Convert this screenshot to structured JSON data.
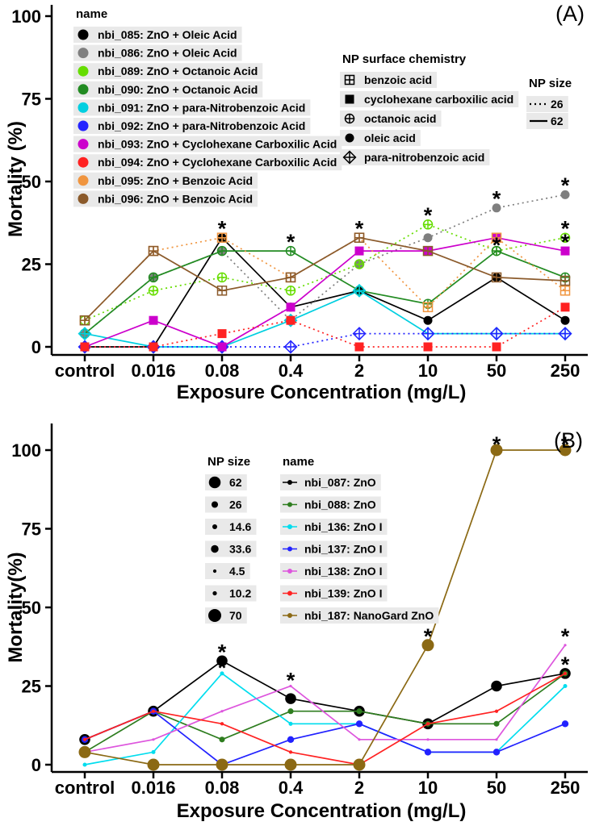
{
  "chart_data": [
    {
      "type": "line",
      "panel_label": "(A)",
      "xlabel": "Exposure Concentration (mg/L)",
      "ylabel": "Mortality (%)",
      "categories": [
        "control",
        "0.016",
        "0.08",
        "0.4",
        "2",
        "10",
        "50",
        "250"
      ],
      "ylim": [
        0,
        100
      ],
      "yticks": [
        0,
        25,
        50,
        75,
        100
      ],
      "grid": false,
      "legend_position": "inside-top-left",
      "significance_symbol": "*",
      "legends": {
        "name": {
          "title": "name"
        },
        "surface_chemistry": {
          "title": "NP surface chemistry",
          "items": [
            {
              "label": "benzoic acid",
              "marker": "square-plus"
            },
            {
              "label": "cyclohexane carboxilic acid",
              "marker": "filled-square"
            },
            {
              "label": "octanoic acid",
              "marker": "circle-plus"
            },
            {
              "label": "oleic acid",
              "marker": "filled-circle"
            },
            {
              "label": "para-nitrobenzoic acid",
              "marker": "diamond-plus"
            }
          ]
        },
        "size": {
          "title": "NP size",
          "items": [
            {
              "label": "26",
              "line": "dotted"
            },
            {
              "label": "62",
              "line": "solid"
            }
          ]
        }
      },
      "series": [
        {
          "name": "nbi_085: ZnO + Oleic Acid",
          "color": "#000000",
          "marker": "filled-circle",
          "line": "solid",
          "np_size": 62,
          "values": [
            0,
            0,
            33,
            12,
            17,
            8,
            21,
            8
          ]
        },
        {
          "name": "nbi_086: ZnO + Oleic Acid",
          "color": "#7F7F7F",
          "marker": "filled-circle",
          "line": "dotted",
          "np_size": 26,
          "values": [
            4,
            21,
            29,
            8,
            25,
            33,
            42,
            46
          ]
        },
        {
          "name": "nbi_089: ZnO + Octanoic Acid",
          "color": "#66DD00",
          "marker": "circle-plus",
          "line": "dotted",
          "np_size": 26,
          "values": [
            8,
            17,
            21,
            17,
            25,
            37,
            29,
            33
          ]
        },
        {
          "name": "nbi_090: ZnO + Octanoic Acid",
          "color": "#228B22",
          "marker": "circle-plus",
          "line": "solid",
          "np_size": 62,
          "values": [
            4,
            21,
            29,
            29,
            17,
            13,
            29,
            21
          ]
        },
        {
          "name": "nbi_091: ZnO + para-Nitrobenzoic Acid",
          "color": "#00CFE0",
          "marker": "diamond-plus",
          "line": "solid",
          "np_size": 62,
          "values": [
            4,
            0,
            0,
            8,
            17,
            4,
            4,
            4
          ]
        },
        {
          "name": "nbi_092: ZnO + para-Nitrobenzoic Acid",
          "color": "#2222FF",
          "marker": "diamond-plus",
          "line": "dotted",
          "np_size": 26,
          "values": [
            0,
            0,
            0,
            0,
            4,
            4,
            4,
            4
          ]
        },
        {
          "name": "nbi_093: ZnO + Cyclohexane Carboxilic Acid",
          "color": "#CC00CC",
          "marker": "filled-square",
          "line": "solid",
          "np_size": 62,
          "values": [
            0,
            8,
            0,
            12,
            29,
            29,
            33,
            29
          ]
        },
        {
          "name": "nbi_094: ZnO + Cyclohexane Carboxilic Acid",
          "color": "#FF2222",
          "marker": "filled-square",
          "line": "dotted",
          "np_size": 26,
          "values": [
            0,
            0,
            4,
            8,
            0,
            0,
            0,
            12
          ]
        },
        {
          "name": "nbi_095: ZnO + Benzoic Acid",
          "color": "#F0953F",
          "marker": "square-plus",
          "line": "dotted",
          "np_size": 26,
          "values": [
            8,
            29,
            33,
            21,
            33,
            12,
            33,
            17
          ]
        },
        {
          "name": "nbi_096: ZnO + Benzoic Acid",
          "color": "#8B5A2B",
          "marker": "square-plus",
          "line": "solid",
          "np_size": 62,
          "values": [
            8,
            29,
            17,
            21,
            33,
            29,
            21,
            20
          ]
        }
      ],
      "significance_asterisks": [
        {
          "category": "0.08",
          "y": 36
        },
        {
          "category": "0.4",
          "y": 32
        },
        {
          "category": "2",
          "y": 36
        },
        {
          "category": "10",
          "y": 40
        },
        {
          "category": "50",
          "y": 45
        },
        {
          "category": "50",
          "y": 31
        },
        {
          "category": "250",
          "y": 49
        },
        {
          "category": "250",
          "y": 36
        },
        {
          "category": "250",
          "y": 32
        }
      ]
    },
    {
      "type": "line",
      "panel_label": "(B)",
      "xlabel": "Exposure Concentration (mg/L)",
      "ylabel": "Mortality(%)",
      "categories": [
        "control",
        "0.016",
        "0.08",
        "0.4",
        "2",
        "10",
        "50",
        "250"
      ],
      "ylim": [
        0,
        100
      ],
      "yticks": [
        0,
        25,
        50,
        75,
        100
      ],
      "grid": false,
      "legend_position": "inside-top-left",
      "significance_symbol": "*",
      "legends": {
        "size": {
          "title": "NP size",
          "items": [
            {
              "label": "62"
            },
            {
              "label": "26"
            },
            {
              "label": "14.6"
            },
            {
              "label": "33.6"
            },
            {
              "label": "4.5"
            },
            {
              "label": "10.2"
            },
            {
              "label": "70"
            }
          ]
        },
        "name": {
          "title": "name"
        }
      },
      "series": [
        {
          "name": "nbi_087: ZnO",
          "color": "#000000",
          "np_size": 62,
          "values": [
            8,
            17,
            33,
            21,
            17,
            13,
            25,
            29
          ]
        },
        {
          "name": "nbi_088: ZnO",
          "color": "#2E7D1F",
          "np_size": 26,
          "values": [
            4,
            17,
            8,
            17,
            17,
            13,
            13,
            29
          ]
        },
        {
          "name": "nbi_136: ZnO I",
          "color": "#00DDEE",
          "np_size": 14.6,
          "values": [
            0,
            4,
            29,
            13,
            13,
            4,
            4,
            25
          ]
        },
        {
          "name": "nbi_137: ZnO I",
          "color": "#2222FF",
          "np_size": 33.6,
          "values": [
            8,
            17,
            0,
            8,
            13,
            4,
            4,
            13
          ]
        },
        {
          "name": "nbi_138: ZnO I",
          "color": "#DD55DD",
          "np_size": 4.5,
          "values": [
            4,
            8,
            17,
            25,
            8,
            8,
            8,
            38
          ]
        },
        {
          "name": "nbi_139: ZnO I",
          "color": "#FF2222",
          "np_size": 10.2,
          "values": [
            8,
            17,
            13,
            4,
            0,
            13,
            17,
            29
          ]
        },
        {
          "name": "nbi_187: NanoGard ZnO",
          "color": "#8B6914",
          "np_size": 70,
          "values": [
            4,
            0,
            0,
            0,
            0,
            38,
            100,
            100
          ]
        }
      ],
      "significance_asterisks": [
        {
          "category": "0.08",
          "y": 36
        },
        {
          "category": "0.08",
          "y": 31
        },
        {
          "category": "0.4",
          "y": 27
        },
        {
          "category": "10",
          "y": 41
        },
        {
          "category": "50",
          "y": 102
        },
        {
          "category": "250",
          "y": 102
        },
        {
          "category": "250",
          "y": 41
        },
        {
          "category": "250",
          "y": 32
        }
      ]
    }
  ]
}
